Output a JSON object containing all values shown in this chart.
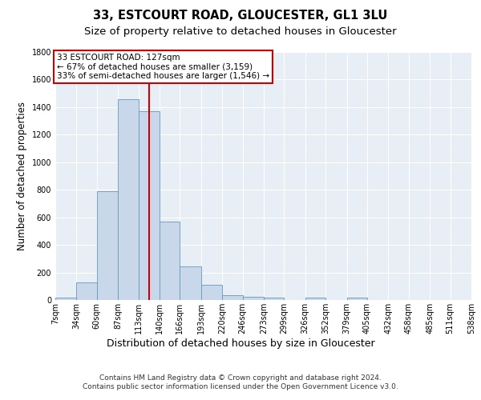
{
  "title_line1": "33, ESTCOURT ROAD, GLOUCESTER, GL1 3LU",
  "title_line2": "Size of property relative to detached houses in Gloucester",
  "xlabel": "Distribution of detached houses by size in Gloucester",
  "ylabel": "Number of detached properties",
  "bin_edges": [
    7,
    34,
    60,
    87,
    113,
    140,
    166,
    193,
    220,
    246,
    273,
    299,
    326,
    352,
    379,
    405,
    432,
    458,
    485,
    511,
    538
  ],
  "bar_heights": [
    20,
    130,
    790,
    1460,
    1370,
    570,
    245,
    110,
    35,
    25,
    15,
    0,
    15,
    0,
    20,
    0,
    0,
    0,
    0,
    0
  ],
  "bar_color": "#c8d8ea",
  "bar_edge_color": "#6699bb",
  "property_value": 127,
  "property_line_color": "#cc0000",
  "annotation_text": "33 ESTCOURT ROAD: 127sqm\n← 67% of detached houses are smaller (3,159)\n33% of semi-detached houses are larger (1,546) →",
  "annotation_box_color": "#ffffff",
  "annotation_box_edge_color": "#cc0000",
  "ylim": [
    0,
    1800
  ],
  "background_color": "#e8eef5",
  "grid_color": "#ffffff",
  "fig_background": "#ffffff",
  "footnote": "Contains HM Land Registry data © Crown copyright and database right 2024.\nContains public sector information licensed under the Open Government Licence v3.0.",
  "title_fontsize": 10.5,
  "subtitle_fontsize": 9.5,
  "tick_label_fontsize": 7,
  "ylabel_fontsize": 8.5,
  "xlabel_fontsize": 9,
  "annotation_fontsize": 7.5,
  "footnote_fontsize": 6.5
}
